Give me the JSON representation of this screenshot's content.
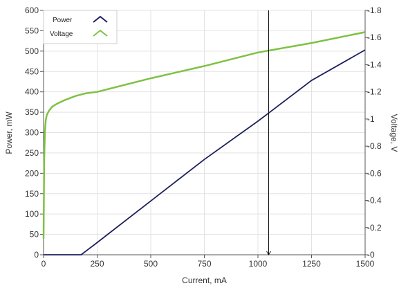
{
  "chart_data": {
    "type": "line",
    "xlabel": "Current, mA",
    "ylabel_left": "Power, mW",
    "ylabel_right": "Voltage, V",
    "xlim": [
      0,
      1500
    ],
    "ylim_left": [
      0,
      600
    ],
    "ylim_right": [
      0,
      1.8
    ],
    "x_ticks": [
      "0",
      "250",
      "500",
      "750",
      "1000",
      "1250",
      "1500"
    ],
    "y_left_ticks": [
      "0",
      "50",
      "100",
      "150",
      "200",
      "250",
      "300",
      "350",
      "400",
      "450",
      "500",
      "550",
      "600"
    ],
    "y_right_ticks": [
      "0",
      "0.2",
      "0.4",
      "0.6",
      "0.8",
      "1",
      "1.2",
      "1.4",
      "1.6",
      "1.8"
    ],
    "grid": true,
    "legend_position": "top-left",
    "cursor_x": 1050,
    "series": [
      {
        "name": "Power",
        "axis": "left",
        "color": "#1c1f5c",
        "x": [
          0,
          100,
          175,
          250,
          500,
          750,
          1000,
          1050,
          1250,
          1500
        ],
        "y": [
          0,
          0,
          0,
          30,
          132,
          234,
          328,
          348,
          428,
          503
        ]
      },
      {
        "name": "Voltage",
        "axis": "right",
        "color": "#7dc242",
        "x": [
          0,
          3,
          6,
          10,
          15,
          25,
          40,
          60,
          100,
          150,
          200,
          250,
          500,
          750,
          1000,
          1250,
          1500
        ],
        "y": [
          0.12,
          0.7,
          0.9,
          0.99,
          1.03,
          1.06,
          1.09,
          1.11,
          1.14,
          1.17,
          1.19,
          1.2,
          1.3,
          1.39,
          1.49,
          1.56,
          1.64
        ]
      }
    ],
    "legend": [
      {
        "label": "Power",
        "color": "#1c1f5c"
      },
      {
        "label": "Voltage",
        "color": "#7dc242"
      }
    ]
  }
}
